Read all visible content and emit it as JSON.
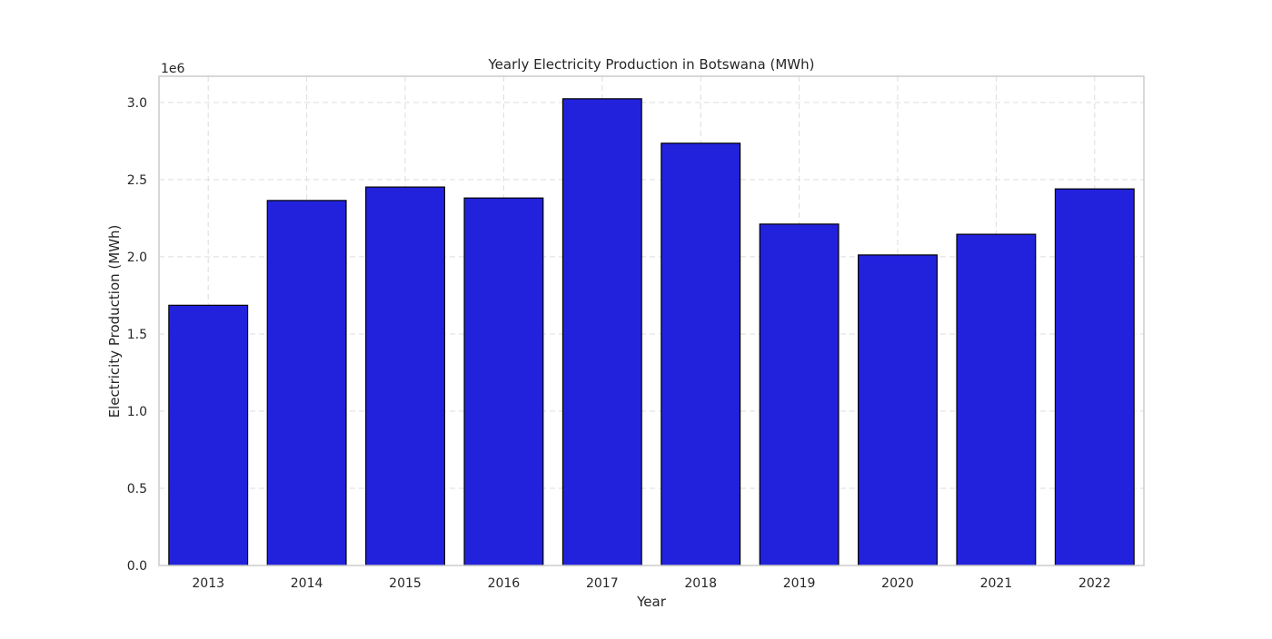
{
  "chart_data": {
    "type": "bar",
    "title": "Yearly Electricity Production in Botswana (MWh)",
    "xlabel": "Year",
    "ylabel": "Electricity Production (MWh)",
    "y_offset_label": "1e6",
    "y_scale": 1000000,
    "categories": [
      "2013",
      "2014",
      "2015",
      "2016",
      "2017",
      "2018",
      "2019",
      "2020",
      "2021",
      "2022"
    ],
    "values": [
      1686000,
      2365000,
      2452000,
      2381000,
      3024000,
      2736000,
      2212000,
      2012000,
      2146000,
      2440000
    ],
    "ylim": [
      0,
      3170000
    ],
    "yticks": [
      0,
      500000,
      1000000,
      1500000,
      2000000,
      2500000,
      3000000
    ],
    "ytick_labels": [
      "0.0",
      "0.5",
      "1.0",
      "1.5",
      "2.0",
      "2.5",
      "3.0"
    ],
    "grid": true,
    "bar_color": "#2222dd",
    "bar_edge_color": "#000000",
    "grid_color": "#dddddd",
    "frame_color": "#cccccc"
  }
}
